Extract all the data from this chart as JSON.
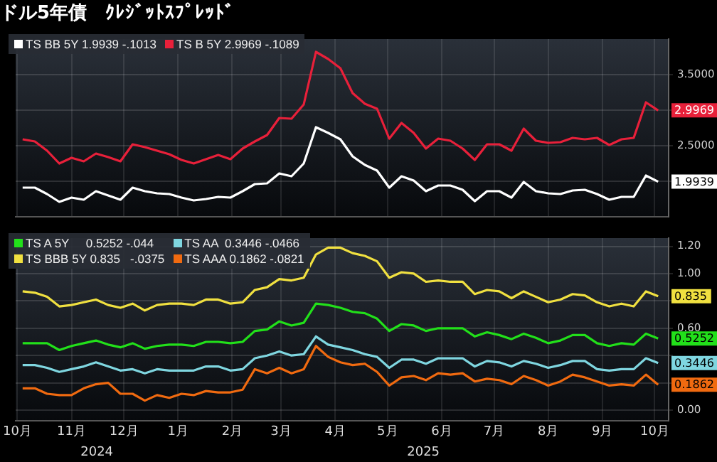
{
  "chart_data": [
    {
      "type": "line",
      "title": "ドル5年債　ｸﾚｼﾞｯﾄｽﾌﾟﾚｯﾄﾞ",
      "x": [
        "2024-10-04",
        "2024-10-11",
        "2024-10-18",
        "2024-10-25",
        "2024-11-01",
        "2024-11-08",
        "2024-11-15",
        "2024-11-22",
        "2024-11-29",
        "2024-12-06",
        "2024-12-13",
        "2024-12-20",
        "2024-12-27",
        "2025-01-03",
        "2025-01-10",
        "2025-01-17",
        "2025-01-24",
        "2025-01-31",
        "2025-02-07",
        "2025-02-14",
        "2025-02-21",
        "2025-02-28",
        "2025-03-07",
        "2025-03-14",
        "2025-03-21",
        "2025-03-28",
        "2025-04-04",
        "2025-04-11",
        "2025-04-18",
        "2025-04-25",
        "2025-05-02",
        "2025-05-09",
        "2025-05-16",
        "2025-05-23",
        "2025-05-30",
        "2025-06-06",
        "2025-06-13",
        "2025-06-20",
        "2025-06-27",
        "2025-07-04",
        "2025-07-11",
        "2025-07-18",
        "2025-07-25",
        "2025-08-01",
        "2025-08-08",
        "2025-08-15",
        "2025-08-22",
        "2025-08-29",
        "2025-09-05",
        "2025-09-12",
        "2025-09-19",
        "2025-09-26",
        "2025-10-03"
      ],
      "series": [
        {
          "name": "TS BB 5Y 1.9939 -.1013",
          "color": "#ffffff",
          "values": [
            1.91,
            1.91,
            1.82,
            1.71,
            1.77,
            1.74,
            1.86,
            1.8,
            1.74,
            1.91,
            1.86,
            1.83,
            1.82,
            1.77,
            1.73,
            1.75,
            1.78,
            1.77,
            1.86,
            1.96,
            1.97,
            2.11,
            2.07,
            2.25,
            2.76,
            2.68,
            2.59,
            2.35,
            2.23,
            2.15,
            1.91,
            2.07,
            2.01,
            1.86,
            1.94,
            1.94,
            1.88,
            1.72,
            1.86,
            1.86,
            1.77,
            1.99,
            1.86,
            1.83,
            1.82,
            1.87,
            1.88,
            1.82,
            1.74,
            1.78,
            1.78,
            2.08,
            1.9939
          ],
          "value_labels": [
            null,
            null,
            null,
            null,
            null,
            null,
            null,
            null,
            null,
            null,
            null,
            null,
            null,
            null,
            null,
            null,
            null,
            null,
            null,
            null,
            null,
            null,
            null,
            null,
            null,
            null,
            null,
            null,
            null,
            null,
            null,
            null,
            null,
            null,
            null,
            null,
            null,
            null,
            null,
            null,
            null,
            null,
            null,
            null,
            null,
            null,
            null,
            null,
            null,
            null,
            null,
            null,
            "1.9939"
          ]
        },
        {
          "name": "TS B 5Y 2.9969 -.1089",
          "color": "#e8203a",
          "values": [
            2.59,
            2.56,
            2.43,
            2.25,
            2.33,
            2.28,
            2.39,
            2.34,
            2.28,
            2.52,
            2.48,
            2.43,
            2.38,
            2.3,
            2.25,
            2.31,
            2.37,
            2.31,
            2.46,
            2.56,
            2.65,
            2.89,
            2.88,
            3.08,
            3.82,
            3.72,
            3.59,
            3.24,
            3.09,
            3.02,
            2.6,
            2.82,
            2.68,
            2.46,
            2.6,
            2.57,
            2.46,
            2.3,
            2.52,
            2.52,
            2.43,
            2.74,
            2.57,
            2.54,
            2.55,
            2.61,
            2.59,
            2.61,
            2.51,
            2.59,
            2.61,
            3.11,
            2.9969
          ],
          "value_labels": [
            null,
            null,
            null,
            null,
            null,
            null,
            null,
            null,
            null,
            null,
            null,
            null,
            null,
            null,
            null,
            null,
            null,
            null,
            null,
            null,
            null,
            null,
            null,
            null,
            null,
            null,
            null,
            null,
            null,
            null,
            null,
            null,
            null,
            null,
            null,
            null,
            null,
            null,
            null,
            null,
            null,
            null,
            null,
            null,
            null,
            null,
            null,
            null,
            null,
            null,
            null,
            null,
            "2.9969"
          ]
        }
      ],
      "xlim": [
        "2024-09-30",
        "2025-10-09"
      ],
      "xticks": [
        {
          "value": "2024-10-01",
          "label": null
        },
        {
          "value": "2024-11-01",
          "label": null
        },
        {
          "value": "2024-12-01",
          "label": null
        },
        {
          "value": "2025-01-01",
          "label": null
        },
        {
          "value": "2025-02-01",
          "label": null
        },
        {
          "value": "2025-03-01",
          "label": null
        },
        {
          "value": "2025-04-01",
          "label": null
        },
        {
          "value": "2025-05-01",
          "label": null
        },
        {
          "value": "2025-06-01",
          "label": null
        },
        {
          "value": "2025-07-01",
          "label": null
        },
        {
          "value": "2025-08-01",
          "label": null
        },
        {
          "value": "2025-09-01",
          "label": null
        },
        {
          "value": "2025-10-01",
          "label": null
        }
      ],
      "ylim": [
        1.5,
        4.0
      ],
      "yticks": [
        {
          "value": 2,
          "label": null
        },
        {
          "value": 2.5,
          "label": "2.5000"
        },
        {
          "value": 3,
          "label": null
        },
        {
          "value": 3.5,
          "label": "3.5000"
        }
      ],
      "tick_labels": "y",
      "grid": true,
      "legend": "top left",
      "marker": "none",
      "line_style": "solid"
    },
    {
      "type": "line",
      "x": [
        "2024-10-04",
        "2024-10-11",
        "2024-10-18",
        "2024-10-25",
        "2024-11-01",
        "2024-11-08",
        "2024-11-15",
        "2024-11-22",
        "2024-11-29",
        "2024-12-06",
        "2024-12-13",
        "2024-12-20",
        "2024-12-27",
        "2025-01-03",
        "2025-01-10",
        "2025-01-17",
        "2025-01-24",
        "2025-01-31",
        "2025-02-07",
        "2025-02-14",
        "2025-02-21",
        "2025-02-28",
        "2025-03-07",
        "2025-03-14",
        "2025-03-21",
        "2025-03-28",
        "2025-04-04",
        "2025-04-11",
        "2025-04-18",
        "2025-04-25",
        "2025-05-02",
        "2025-05-09",
        "2025-05-16",
        "2025-05-23",
        "2025-05-30",
        "2025-06-06",
        "2025-06-13",
        "2025-06-20",
        "2025-06-27",
        "2025-07-04",
        "2025-07-11",
        "2025-07-18",
        "2025-07-25",
        "2025-08-01",
        "2025-08-08",
        "2025-08-15",
        "2025-08-22",
        "2025-08-29",
        "2025-09-05",
        "2025-09-12",
        "2025-09-19",
        "2025-09-26",
        "2025-10-03"
      ],
      "series": [
        {
          "name": "TS A 5Y     0.5252 -.044",
          "color": "#22e01a",
          "values": [
            0.49,
            0.49,
            0.49,
            0.44,
            0.47,
            0.49,
            0.51,
            0.48,
            0.46,
            0.49,
            0.45,
            0.47,
            0.48,
            0.48,
            0.47,
            0.5,
            0.5,
            0.49,
            0.5,
            0.58,
            0.59,
            0.65,
            0.62,
            0.64,
            0.78,
            0.77,
            0.75,
            0.72,
            0.71,
            0.67,
            0.58,
            0.63,
            0.62,
            0.58,
            0.6,
            0.6,
            0.6,
            0.54,
            0.57,
            0.55,
            0.52,
            0.56,
            0.53,
            0.49,
            0.51,
            0.55,
            0.55,
            0.49,
            0.47,
            0.49,
            0.48,
            0.56,
            0.5252
          ],
          "value_labels": [
            null,
            null,
            null,
            null,
            null,
            null,
            null,
            null,
            null,
            null,
            null,
            null,
            null,
            null,
            null,
            null,
            null,
            null,
            null,
            null,
            null,
            null,
            null,
            null,
            null,
            null,
            null,
            null,
            null,
            null,
            null,
            null,
            null,
            null,
            null,
            null,
            null,
            null,
            null,
            null,
            null,
            null,
            null,
            null,
            null,
            null,
            null,
            null,
            null,
            null,
            null,
            null,
            "0.5252"
          ]
        },
        {
          "name": "TS AA  0.3446 -.0466",
          "color": "#7fd6e0",
          "values": [
            0.33,
            0.33,
            0.31,
            0.28,
            0.3,
            0.32,
            0.35,
            0.32,
            0.29,
            0.3,
            0.27,
            0.3,
            0.29,
            0.29,
            0.29,
            0.32,
            0.32,
            0.29,
            0.3,
            0.38,
            0.4,
            0.43,
            0.4,
            0.41,
            0.54,
            0.48,
            0.46,
            0.44,
            0.41,
            0.39,
            0.31,
            0.37,
            0.37,
            0.34,
            0.38,
            0.38,
            0.38,
            0.32,
            0.36,
            0.35,
            0.32,
            0.36,
            0.34,
            0.31,
            0.33,
            0.36,
            0.36,
            0.3,
            0.29,
            0.3,
            0.3,
            0.38,
            0.3446
          ],
          "value_labels": [
            null,
            null,
            null,
            null,
            null,
            null,
            null,
            null,
            null,
            null,
            null,
            null,
            null,
            null,
            null,
            null,
            null,
            null,
            null,
            null,
            null,
            null,
            null,
            null,
            null,
            null,
            null,
            null,
            null,
            null,
            null,
            null,
            null,
            null,
            null,
            null,
            null,
            null,
            null,
            null,
            null,
            null,
            null,
            null,
            null,
            null,
            null,
            null,
            null,
            null,
            null,
            null,
            "0.3446"
          ]
        },
        {
          "name": "TS BBB 5Y 0.835   -.0375",
          "color": "#f0e040",
          "values": [
            0.87,
            0.86,
            0.83,
            0.76,
            0.77,
            0.79,
            0.81,
            0.77,
            0.75,
            0.78,
            0.73,
            0.77,
            0.78,
            0.78,
            0.77,
            0.81,
            0.81,
            0.78,
            0.79,
            0.88,
            0.9,
            0.96,
            0.95,
            0.97,
            1.14,
            1.19,
            1.19,
            1.15,
            1.13,
            1.09,
            0.97,
            1.01,
            1.0,
            0.94,
            0.95,
            0.94,
            0.94,
            0.85,
            0.88,
            0.87,
            0.82,
            0.87,
            0.83,
            0.79,
            0.81,
            0.85,
            0.84,
            0.79,
            0.76,
            0.78,
            0.76,
            0.87,
            0.835
          ],
          "value_labels": [
            null,
            null,
            null,
            null,
            null,
            null,
            null,
            null,
            null,
            null,
            null,
            null,
            null,
            null,
            null,
            null,
            null,
            null,
            null,
            null,
            null,
            null,
            null,
            null,
            null,
            null,
            null,
            null,
            null,
            null,
            null,
            null,
            null,
            null,
            null,
            null,
            null,
            null,
            null,
            null,
            null,
            null,
            null,
            null,
            null,
            null,
            null,
            null,
            null,
            null,
            null,
            null,
            "0.835"
          ]
        },
        {
          "name": "TS AAA 0.1862 -.0821",
          "color": "#f06a10",
          "values": [
            0.16,
            0.16,
            0.12,
            0.11,
            0.11,
            0.16,
            0.19,
            0.2,
            0.12,
            0.12,
            0.07,
            0.11,
            0.09,
            0.12,
            0.11,
            0.14,
            0.13,
            0.13,
            0.15,
            0.3,
            0.27,
            0.31,
            0.27,
            0.3,
            0.47,
            0.39,
            0.35,
            0.33,
            0.34,
            0.28,
            0.18,
            0.24,
            0.25,
            0.22,
            0.27,
            0.26,
            0.27,
            0.21,
            0.23,
            0.22,
            0.19,
            0.25,
            0.22,
            0.18,
            0.21,
            0.26,
            0.24,
            0.21,
            0.18,
            0.19,
            0.18,
            0.26,
            0.1862
          ],
          "value_labels": [
            null,
            null,
            null,
            null,
            null,
            null,
            null,
            null,
            null,
            null,
            null,
            null,
            null,
            null,
            null,
            null,
            null,
            null,
            null,
            null,
            null,
            null,
            null,
            null,
            null,
            null,
            null,
            null,
            null,
            null,
            null,
            null,
            null,
            null,
            null,
            null,
            null,
            null,
            null,
            null,
            null,
            null,
            null,
            null,
            null,
            null,
            null,
            null,
            null,
            null,
            null,
            null,
            "0.1862"
          ]
        }
      ],
      "xlim": [
        "2024-09-30",
        "2025-10-09"
      ],
      "xticks": [
        {
          "value": "2024-10-01",
          "label": "10月"
        },
        {
          "value": "2024-11-01",
          "label": "11月"
        },
        {
          "value": "2024-12-01",
          "label": "12月"
        },
        {
          "value": "2025-01-01",
          "label": "1月"
        },
        {
          "value": "2025-02-01",
          "label": "2月"
        },
        {
          "value": "2025-03-01",
          "label": "3月"
        },
        {
          "value": "2025-04-01",
          "label": "4月"
        },
        {
          "value": "2025-05-01",
          "label": "5月"
        },
        {
          "value": "2025-06-01",
          "label": "6月"
        },
        {
          "value": "2025-07-01",
          "label": "7月"
        },
        {
          "value": "2025-08-01",
          "label": "8月"
        },
        {
          "value": "2025-09-01",
          "label": "9月"
        },
        {
          "value": "2025-10-01",
          "label": "10月"
        }
      ],
      "ylim": [
        -0.08,
        1.26
      ],
      "yticks": [
        {
          "value": 0,
          "label": "0.00"
        },
        {
          "value": 0.2,
          "label": null
        },
        {
          "value": 0.4,
          "label": null
        },
        {
          "value": 0.6,
          "label": "0.60"
        },
        {
          "value": 0.8,
          "label": null
        },
        {
          "value": 1.0,
          "label": "1.00"
        },
        {
          "value": 1.2,
          "label": "1.20"
        }
      ],
      "annotations": [
        "2024",
        "2025"
      ],
      "grid": true,
      "legend": "top left",
      "marker": "none",
      "line_style": "solid"
    }
  ]
}
